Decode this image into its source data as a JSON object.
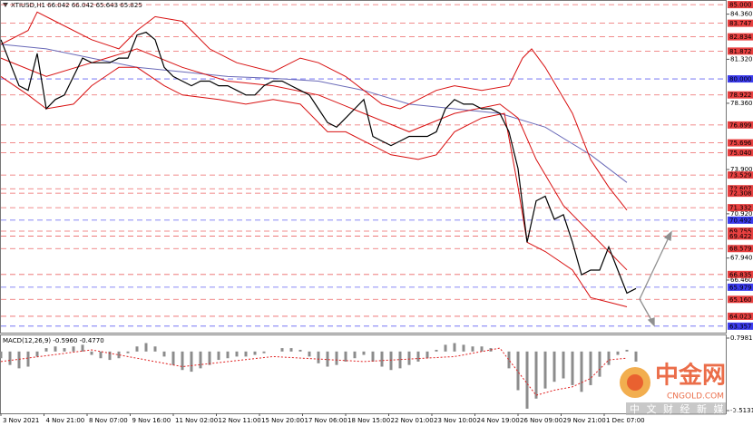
{
  "chart_data": [
    {
      "type": "line",
      "title": "XTIUSD,H1  66.042 66.042 65.643 65.825",
      "xlim": [
        0,
        160
      ],
      "ylim": [
        62.92,
        85.25
      ],
      "yticks": [
        {
          "value": 84.36,
          "label": "84.360"
        },
        {
          "value": 81.32,
          "label": "81.320"
        },
        {
          "value": 78.36,
          "label": "78.360"
        },
        {
          "value": 73.9,
          "label": "73.900"
        },
        {
          "value": 70.92,
          "label": "70.920"
        },
        {
          "value": 67.94,
          "label": "67.940"
        },
        {
          "value": 66.46,
          "label": "66.460"
        }
      ],
      "levels": [
        {
          "value": 85.0,
          "label": "85.000",
          "color": "#e84040"
        },
        {
          "value": 83.747,
          "label": "83.747",
          "color": "#e84040"
        },
        {
          "value": 82.834,
          "label": "82.834",
          "color": "#e84040"
        },
        {
          "value": 81.872,
          "label": "81.872",
          "color": "#e84040"
        },
        {
          "value": 80.0,
          "label": "80.000",
          "color": "#3c3cf0"
        },
        {
          "value": 78.922,
          "label": "78.922",
          "color": "#e84040"
        },
        {
          "value": 76.899,
          "label": "76.899",
          "color": "#e84040"
        },
        {
          "value": 75.696,
          "label": "75.696",
          "color": "#e84040"
        },
        {
          "value": 75.04,
          "label": "75.040",
          "color": "#e84040"
        },
        {
          "value": 73.529,
          "label": "73.529",
          "color": "#e84040"
        },
        {
          "value": 72.607,
          "label": "72.607",
          "color": "#e84040"
        },
        {
          "value": 72.308,
          "label": "72.308",
          "color": "#e84040"
        },
        {
          "value": 71.332,
          "label": "71.332",
          "color": "#e84040"
        },
        {
          "value": 70.492,
          "label": "70.492",
          "color": "#3c3cf0"
        },
        {
          "value": 69.755,
          "label": "69.755",
          "color": "#e84040"
        },
        {
          "value": 69.422,
          "label": "69.422",
          "color": "#e84040"
        },
        {
          "value": 68.579,
          "label": "68.579",
          "color": "#e84040"
        },
        {
          "value": 66.835,
          "label": "66.835",
          "color": "#e84040"
        },
        {
          "value": 65.979,
          "label": "65.979",
          "color": "#3c3cf0"
        },
        {
          "value": 65.16,
          "label": "65.160",
          "color": "#e84040"
        },
        {
          "value": 64.023,
          "label": "64.023",
          "color": "#e84040"
        },
        {
          "value": 63.357,
          "label": "63.357",
          "color": "#3c3cf0"
        }
      ],
      "series": [
        {
          "type": "line",
          "color": "#6a6ab8",
          "width": 1,
          "x": [
            0,
            10,
            20,
            30,
            40,
            50,
            60,
            70,
            80,
            90,
            100,
            110,
            120,
            130,
            138
          ],
          "values": [
            82.33,
            82.02,
            81.4,
            80.78,
            80.47,
            80.16,
            80.04,
            79.85,
            79.23,
            78.3,
            77.99,
            77.68,
            76.75,
            74.89,
            73.03
          ]
        },
        {
          "type": "line",
          "color": "#d81010",
          "width": 1,
          "x": [
            0,
            6,
            8,
            12,
            20,
            26,
            30,
            34,
            40,
            46,
            52,
            60,
            66,
            70,
            76,
            80,
            84,
            88,
            92,
            96,
            100,
            106,
            112,
            115,
            117,
            120,
            126,
            130,
            134,
            138
          ],
          "values": [
            82.33,
            83.26,
            84.5,
            83.88,
            82.64,
            82.02,
            83.26,
            84.19,
            83.88,
            82.02,
            81.09,
            80.47,
            81.4,
            81.09,
            80.16,
            79.23,
            78.3,
            77.99,
            78.61,
            79.23,
            79.54,
            79.23,
            79.54,
            81.4,
            82.02,
            80.78,
            77.68,
            74.58,
            72.72,
            71.17
          ]
        },
        {
          "type": "line",
          "color": "#d81010",
          "width": 1,
          "x": [
            0,
            10,
            20,
            30,
            40,
            50,
            60,
            70,
            80,
            90,
            100,
            110,
            114,
            118,
            124,
            130,
            136,
            138
          ],
          "values": [
            81.4,
            80.16,
            81.09,
            82.02,
            80.78,
            79.85,
            79.54,
            78.92,
            77.68,
            76.44,
            77.68,
            78.3,
            77.37,
            74.58,
            71.48,
            69.62,
            67.76,
            67.14
          ]
        },
        {
          "type": "line",
          "color": "#d81010",
          "width": 1,
          "x": [
            0,
            6,
            10,
            16,
            20,
            26,
            30,
            36,
            40,
            48,
            54,
            60,
            66,
            72,
            76,
            80,
            86,
            92,
            96,
            100,
            106,
            111,
            114,
            116,
            120,
            126,
            130,
            134,
            138
          ],
          "values": [
            80.16,
            78.92,
            77.99,
            78.3,
            79.54,
            80.78,
            80.78,
            79.54,
            78.92,
            78.61,
            78.3,
            78.61,
            78.3,
            76.44,
            76.44,
            75.82,
            74.89,
            74.58,
            74.89,
            76.44,
            77.37,
            77.68,
            72.72,
            69.0,
            68.38,
            67.14,
            65.28,
            64.97,
            64.66
          ]
        },
        {
          "type": "line",
          "color": "#000000",
          "width": 1.2,
          "x": [
            0,
            2,
            4,
            6,
            8,
            10,
            12,
            14,
            16,
            18,
            20,
            22,
            24,
            26,
            28,
            30,
            32,
            34,
            36,
            38,
            40,
            42,
            44,
            46,
            48,
            50,
            52,
            54,
            56,
            58,
            60,
            62,
            64,
            66,
            68,
            70,
            72,
            74,
            76,
            78,
            80,
            82,
            84,
            86,
            88,
            90,
            92,
            94,
            96,
            98,
            100,
            102,
            104,
            106,
            108,
            110,
            112,
            114,
            116,
            118,
            120,
            122,
            124,
            126,
            128,
            130,
            132,
            134,
            136,
            138,
            140
          ],
          "values": [
            82.64,
            81.09,
            79.54,
            79.23,
            81.71,
            77.99,
            78.61,
            78.92,
            80.16,
            81.4,
            81.09,
            81.09,
            81.09,
            81.4,
            81.4,
            82.95,
            83.14,
            82.64,
            80.78,
            80.16,
            79.85,
            79.54,
            79.85,
            79.85,
            79.54,
            79.54,
            79.23,
            78.92,
            78.92,
            79.54,
            79.85,
            79.85,
            79.54,
            79.23,
            78.92,
            77.99,
            77.06,
            76.75,
            77.37,
            77.99,
            78.61,
            76.13,
            75.82,
            75.51,
            75.82,
            76.13,
            76.13,
            76.13,
            76.44,
            77.99,
            78.61,
            78.3,
            78.3,
            77.99,
            77.99,
            77.68,
            76.44,
            73.96,
            69.0,
            71.79,
            72.1,
            70.55,
            70.86,
            69.0,
            66.82,
            67.13,
            67.13,
            68.69,
            67.13,
            65.58,
            65.89
          ]
        }
      ]
    },
    {
      "type": "macd",
      "title": "MACD(12,26,9) -0.5960 -0.4770",
      "xlim": [
        0,
        160
      ],
      "ylim": [
        -3.5131,
        0.7981
      ],
      "yticks": [
        0.7981,
        -3.5131
      ],
      "xticks": [
        {
          "value": 0,
          "label": "3 Nov 2021"
        },
        {
          "value": 9.5,
          "label": "4 Nov 21:00"
        },
        {
          "value": 19,
          "label": "8 Nov 07:00"
        },
        {
          "value": 28.5,
          "label": "9 Nov 16:00"
        },
        {
          "value": 38,
          "label": "11 Nov 02:00"
        },
        {
          "value": 47.5,
          "label": "12 Nov 11:00"
        },
        {
          "value": 57,
          "label": "15 Nov 20:00"
        },
        {
          "value": 66.5,
          "label": "17 Nov 06:00"
        },
        {
          "value": 76,
          "label": "18 Nov 15:00"
        },
        {
          "value": 85.5,
          "label": "22 Nov 01:00"
        },
        {
          "value": 95,
          "label": "23 Nov 10:00"
        },
        {
          "value": 104.5,
          "label": "24 Nov 19:00"
        },
        {
          "value": 114,
          "label": "26 Nov 09:00"
        },
        {
          "value": 123.5,
          "label": "29 Nov 21:00"
        },
        {
          "value": 133,
          "label": "1 Dec 07:00"
        }
      ],
      "series": [
        {
          "type": "bar",
          "color": "#8c8c8c",
          "x": [
            0,
            2,
            4,
            6,
            8,
            10,
            12,
            14,
            16,
            18,
            20,
            22,
            24,
            26,
            28,
            30,
            32,
            34,
            36,
            38,
            40,
            42,
            44,
            46,
            48,
            50,
            52,
            54,
            56,
            58,
            60,
            62,
            64,
            66,
            68,
            70,
            72,
            74,
            76,
            78,
            80,
            82,
            84,
            86,
            88,
            90,
            92,
            94,
            96,
            98,
            100,
            102,
            104,
            106,
            108,
            110,
            112,
            114,
            116,
            118,
            120,
            122,
            124,
            126,
            128,
            130,
            132,
            134,
            136,
            138,
            140
          ],
          "values": [
            -0.4,
            -0.8,
            -1.0,
            -0.9,
            -0.3,
            0.2,
            0.3,
            0.2,
            0.3,
            0.4,
            -0.2,
            -0.4,
            -0.5,
            -0.4,
            -0.1,
            0.3,
            0.5,
            0.3,
            -0.3,
            -0.8,
            -1.1,
            -1.2,
            -1.0,
            -0.8,
            -0.5,
            -0.4,
            -0.3,
            -0.3,
            -0.2,
            -0.1,
            0.0,
            0.2,
            0.2,
            0.1,
            -0.3,
            -0.7,
            -0.9,
            -0.8,
            -0.6,
            -0.4,
            -0.2,
            -0.6,
            -0.9,
            -1.1,
            -1.0,
            -0.8,
            -0.6,
            -0.4,
            0.1,
            0.4,
            0.5,
            0.4,
            0.3,
            0.3,
            0.2,
            0.0,
            -1.0,
            -2.3,
            -3.4,
            -2.8,
            -2.2,
            -1.8,
            -1.6,
            -2.0,
            -2.4,
            -2.0,
            -1.5,
            -0.8,
            -0.2,
            0.1,
            -0.6
          ]
        },
        {
          "type": "line",
          "color": "#e02020",
          "width": 1,
          "dashed": true,
          "x": [
            0,
            20,
            40,
            60,
            80,
            100,
            110,
            114,
            118,
            122,
            126,
            130,
            134,
            138
          ],
          "values": [
            -0.6,
            0.1,
            -0.9,
            -0.3,
            -0.6,
            -0.3,
            0.2,
            -1.2,
            -2.6,
            -2.3,
            -2.1,
            -1.6,
            -0.5,
            -0.4
          ]
        }
      ]
    }
  ],
  "watermark": {
    "brand": "中金网",
    "site": "CNGOLD.COM",
    "slogan": "中 文 财 经 新 媒 体"
  }
}
